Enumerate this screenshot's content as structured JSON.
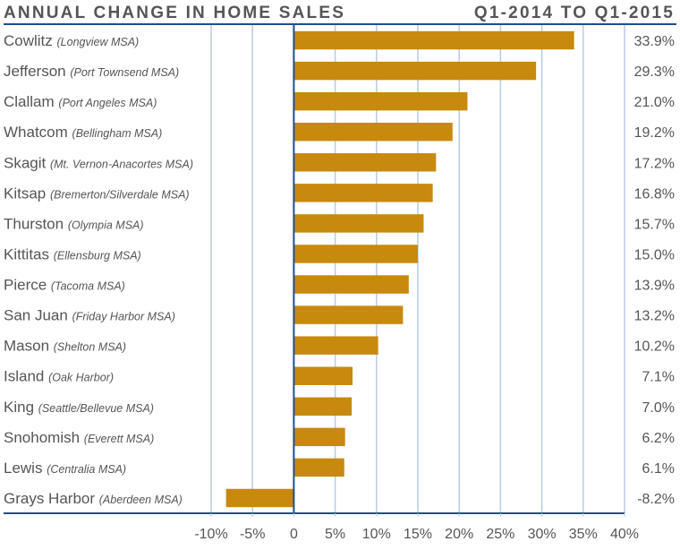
{
  "chart_data": {
    "type": "bar",
    "orientation": "horizontal",
    "title": "ANNUAL CHANGE IN HOME SALES",
    "subtitle": "Q1-2014 TO Q1-2015",
    "xlabel": "",
    "ylabel": "",
    "xlim": [
      -10,
      40
    ],
    "grid": true,
    "legend": "none",
    "bar_color": "#C8890F",
    "grid_color": "#B8CCE0",
    "axis_color": "#1F4E8C",
    "text_color": "#555555",
    "x_ticks": [
      -10,
      -5,
      0,
      5,
      10,
      15,
      20,
      25,
      30,
      35,
      40
    ],
    "x_tick_labels": [
      "-10%",
      "-5%",
      "0",
      "5%",
      "10%",
      "15%",
      "20%",
      "25%",
      "30%",
      "35%",
      "40%"
    ],
    "categories": [
      {
        "name": "Cowlitz",
        "sub": "(Longview MSA)"
      },
      {
        "name": "Jefferson",
        "sub": "(Port Townsend MSA)"
      },
      {
        "name": "Clallam",
        "sub": "(Port Angeles MSA)"
      },
      {
        "name": "Whatcom",
        "sub": "(Bellingham MSA)"
      },
      {
        "name": "Skagit",
        "sub": "(Mt. Vernon-Anacortes MSA)"
      },
      {
        "name": "Kitsap",
        "sub": "(Bremerton/Silverdale MSA)"
      },
      {
        "name": "Thurston",
        "sub": "(Olympia MSA)"
      },
      {
        "name": "Kittitas",
        "sub": "(Ellensburg MSA)"
      },
      {
        "name": "Pierce",
        "sub": "(Tacoma MSA)"
      },
      {
        "name": "San Juan",
        "sub": "(Friday Harbor MSA)"
      },
      {
        "name": "Mason",
        "sub": "(Shelton MSA)"
      },
      {
        "name": "Island",
        "sub": "(Oak Harbor)"
      },
      {
        "name": "King",
        "sub": "(Seattle/Bellevue MSA)"
      },
      {
        "name": "Snohomish",
        "sub": "(Everett MSA)"
      },
      {
        "name": "Lewis",
        "sub": "(Centralia MSA)"
      },
      {
        "name": "Grays Harbor",
        "sub": "(Aberdeen MSA)"
      }
    ],
    "values": [
      33.9,
      29.3,
      21.0,
      19.2,
      17.2,
      16.8,
      15.7,
      15.0,
      13.9,
      13.2,
      10.2,
      7.1,
      7.0,
      6.2,
      6.1,
      -8.2
    ],
    "value_labels": [
      "33.9%",
      "29.3%",
      "21.0%",
      "19.2%",
      "17.2%",
      "16.8%",
      "15.7%",
      "15.0%",
      "13.9%",
      "13.2%",
      "10.2%",
      "7.1%",
      "7.0%",
      "6.2%",
      "6.1%",
      "-8.2%"
    ]
  }
}
